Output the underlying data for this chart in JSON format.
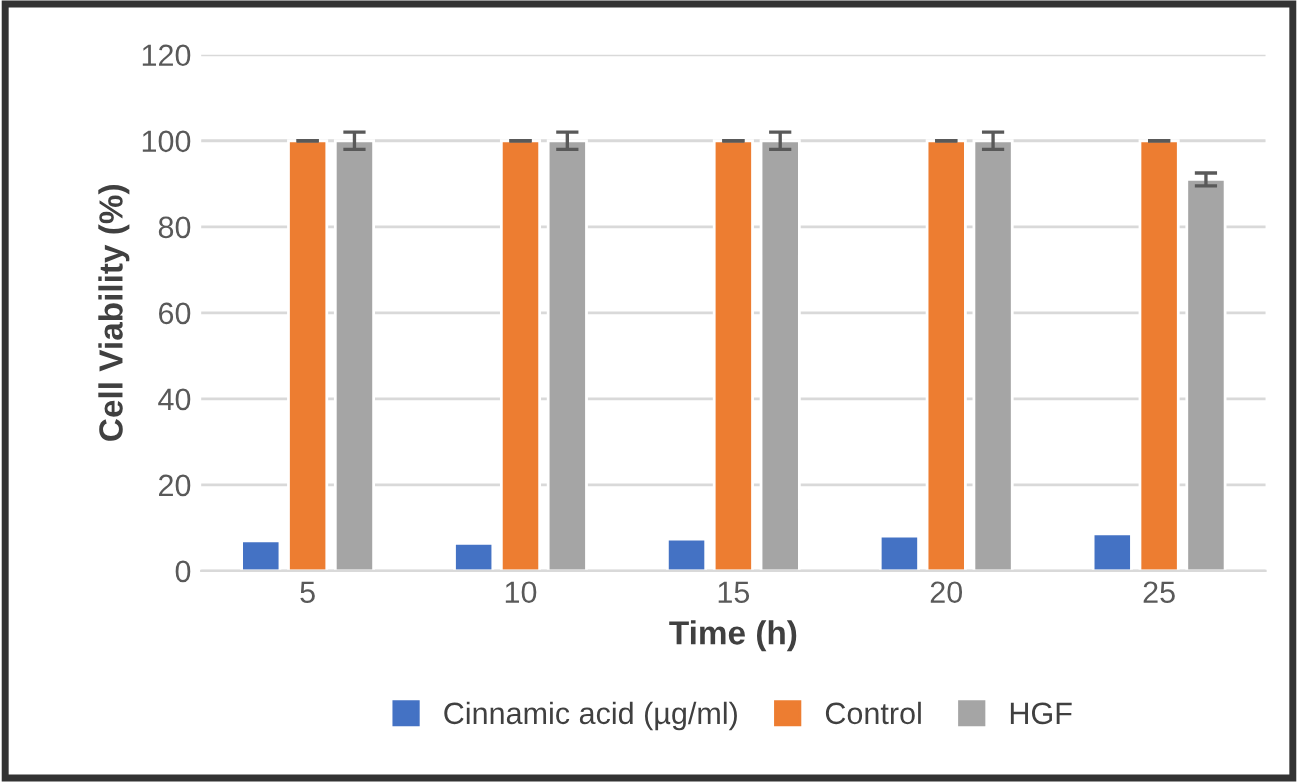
{
  "chart_data": {
    "type": "bar",
    "xlabel": "Time (h)",
    "ylabel": "Cell Viability (%)",
    "categories": [
      "5",
      "10",
      "15",
      "20",
      "25"
    ],
    "series": [
      {
        "name": "Cinnamic acid (µg/ml)",
        "color": "#4472c4",
        "values": [
          7,
          6.4,
          7.4,
          8.1,
          8.6
        ]
      },
      {
        "name": "Control",
        "color": "#ed7d31",
        "values": [
          100,
          100,
          100,
          100,
          100
        ],
        "errors": [
          0,
          0,
          0,
          0,
          0
        ]
      },
      {
        "name": "HGF",
        "color": "#a5a5a5",
        "values": [
          100,
          100,
          100,
          100,
          91
        ],
        "errors": [
          2,
          2,
          2,
          2,
          1.5
        ]
      }
    ],
    "ylim": [
      0,
      120
    ],
    "yticks": [
      0,
      20,
      40,
      60,
      80,
      100,
      120
    ],
    "grid": "y",
    "legend": "bottom"
  }
}
